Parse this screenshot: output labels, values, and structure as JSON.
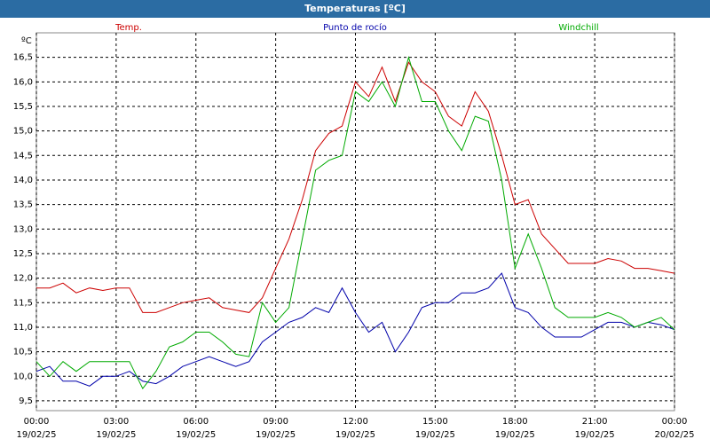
{
  "chart_data": {
    "type": "line",
    "title": "Temperaturas [ºC]",
    "y_label": "ºC",
    "x": [
      0,
      0.5,
      1,
      1.5,
      2,
      2.5,
      3,
      3.5,
      4,
      4.5,
      5,
      5.5,
      6,
      6.5,
      7,
      7.5,
      8,
      8.5,
      9,
      9.5,
      10,
      10.5,
      11,
      11.5,
      12,
      12.5,
      13,
      13.5,
      14,
      14.5,
      15,
      15.5,
      16,
      16.5,
      17,
      17.5,
      18,
      18.5,
      19,
      19.5,
      20,
      20.5,
      21,
      21.5,
      22,
      22.5,
      23,
      23.5,
      24
    ],
    "series": [
      {
        "name": "Temp.",
        "color": "#cc0000",
        "values": [
          11.8,
          11.8,
          11.9,
          11.7,
          11.8,
          11.75,
          11.8,
          11.8,
          11.3,
          11.3,
          11.4,
          11.5,
          11.55,
          11.6,
          11.4,
          11.35,
          11.3,
          11.6,
          12.2,
          12.8,
          13.6,
          14.6,
          14.95,
          15.1,
          16.0,
          15.7,
          16.3,
          15.6,
          16.4,
          16.0,
          15.8,
          15.3,
          15.1,
          15.8,
          15.4,
          14.5,
          13.5,
          13.6,
          12.9,
          12.6,
          12.3,
          12.3,
          12.3,
          12.4,
          12.35,
          12.2,
          12.2,
          12.15,
          12.1
        ]
      },
      {
        "name": "Punto de rocío",
        "color": "#0000aa",
        "values": [
          10.1,
          10.2,
          9.9,
          9.9,
          9.8,
          10.0,
          10.0,
          10.1,
          9.9,
          9.85,
          10.0,
          10.2,
          10.3,
          10.4,
          10.3,
          10.2,
          10.3,
          10.7,
          10.9,
          11.1,
          11.2,
          11.4,
          11.3,
          11.8,
          11.3,
          10.9,
          11.1,
          10.5,
          10.9,
          11.4,
          11.5,
          11.5,
          11.7,
          11.7,
          11.8,
          12.1,
          11.4,
          11.3,
          11.0,
          10.8,
          10.8,
          10.8,
          10.95,
          11.1,
          11.1,
          11.0,
          11.1,
          11.05,
          10.95
        ]
      },
      {
        "name": "Windchill",
        "color": "#00aa00",
        "values": [
          10.3,
          10.0,
          10.3,
          10.1,
          10.3,
          10.3,
          10.3,
          10.3,
          9.75,
          10.1,
          10.6,
          10.7,
          10.9,
          10.9,
          10.7,
          10.45,
          10.4,
          11.5,
          11.1,
          11.4,
          12.8,
          14.2,
          14.4,
          14.5,
          15.8,
          15.6,
          16.0,
          15.5,
          16.5,
          15.6,
          15.6,
          15.0,
          14.6,
          15.3,
          15.2,
          14.0,
          12.2,
          12.9,
          12.2,
          11.4,
          11.2,
          11.2,
          11.2,
          11.3,
          11.2,
          11.0,
          11.1,
          11.2,
          10.95
        ]
      }
    ],
    "xlim": [
      0,
      24
    ],
    "xticks": [
      {
        "value": 0,
        "label": "00:00"
      },
      {
        "value": 3,
        "label": "03:00"
      },
      {
        "value": 6,
        "label": "06:00"
      },
      {
        "value": 9,
        "label": "09:00"
      },
      {
        "value": 12,
        "label": "12:00"
      },
      {
        "value": 15,
        "label": "15:00"
      },
      {
        "value": 18,
        "label": "18:00"
      },
      {
        "value": 21,
        "label": "21:00"
      },
      {
        "value": 24,
        "label": "00:00"
      }
    ],
    "xtick_dates": [
      "19/02/25",
      "19/02/25",
      "19/02/25",
      "19/02/25",
      "19/02/25",
      "19/02/25",
      "19/02/25",
      "19/02/25",
      "20/02/25"
    ],
    "ylim": [
      9.3,
      17.0
    ],
    "yticks": [
      {
        "value": 9.5,
        "label": "9,5"
      },
      {
        "value": 10,
        "label": "10,0"
      },
      {
        "value": 10.5,
        "label": "10,5"
      },
      {
        "value": 11,
        "label": "11,0"
      },
      {
        "value": 11.5,
        "label": "11,5"
      },
      {
        "value": 12,
        "label": "12,0"
      },
      {
        "value": 12.5,
        "label": "12,5"
      },
      {
        "value": 13,
        "label": "13,0"
      },
      {
        "value": 13.5,
        "label": "13,5"
      },
      {
        "value": 14,
        "label": "14,0"
      },
      {
        "value": 14.5,
        "label": "14,5"
      },
      {
        "value": 15,
        "label": "15,0"
      },
      {
        "value": 15.5,
        "label": "15,5"
      },
      {
        "value": 16,
        "label": "16,0"
      },
      {
        "value": 16.5,
        "label": "16,5"
      }
    ],
    "grid": true
  }
}
